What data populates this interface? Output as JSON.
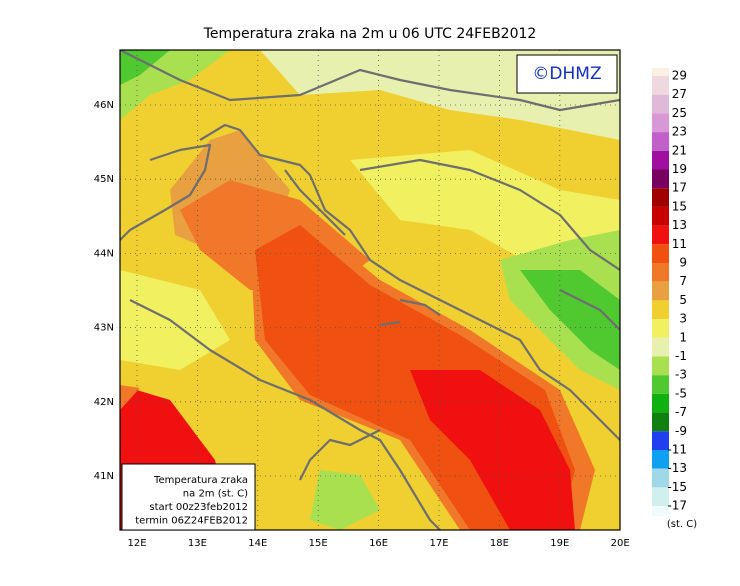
{
  "title": "Temperatura zraka na 2m u 06 UTC 24FEB2012",
  "logo": "©DHMZ",
  "lat_labels": [
    "46N",
    "45N",
    "44N",
    "43N",
    "42N",
    "41N"
  ],
  "lon_labels": [
    "12E",
    "13E",
    "14E",
    "15E",
    "16E",
    "17E",
    "18E",
    "19E",
    "20E"
  ],
  "info_box": [
    "Temperatura zraka",
    "na 2m (st. C)",
    "start 00z23feb2012",
    "termin 06Z24FEB2012"
  ],
  "colorbar": {
    "levels": [
      29,
      27,
      25,
      23,
      21,
      19,
      17,
      15,
      13,
      11,
      9,
      7,
      5,
      3,
      1,
      -1,
      -3,
      -5,
      -7,
      -9,
      -11,
      -13,
      -15,
      -17
    ],
    "colors": [
      "#fdf0e0",
      "#f0d8e0",
      "#e0b8d8",
      "#d898d8",
      "#c060c8",
      "#a010a0",
      "#780060",
      "#a00000",
      "#c80000",
      "#f01010",
      "#f05010",
      "#f07828",
      "#e8a040",
      "#f0d030",
      "#f0f060",
      "#e8f0b0",
      "#a8e050",
      "#50c830",
      "#10b010",
      "#108010",
      "#2040f0",
      "#10a0f0",
      "#a0d8e8",
      "#d0f0f0",
      "#f0fcfc"
    ],
    "unit": "(st. C)"
  }
}
